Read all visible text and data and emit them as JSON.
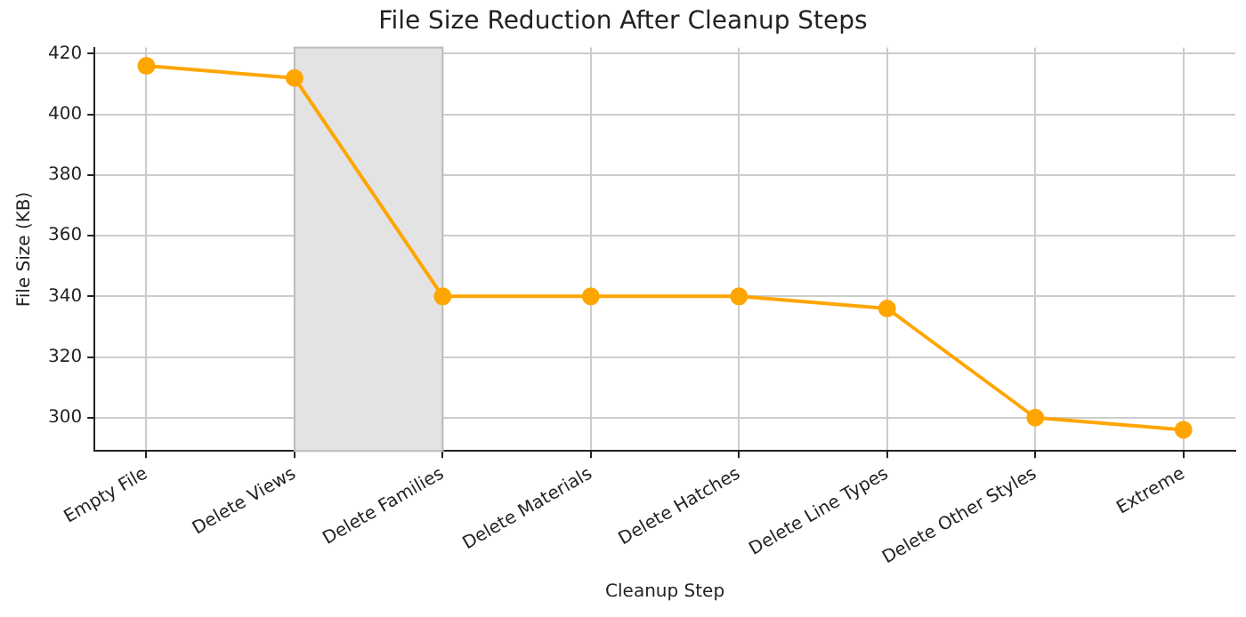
{
  "chart_data": {
    "type": "line",
    "title": "File Size Reduction After Cleanup Steps",
    "xlabel": "Cleanup Step",
    "ylabel": "File Size (KB)",
    "categories": [
      "Empty File",
      "Delete Views",
      "Delete Families",
      "Delete Materials",
      "Delete Hatches",
      "Delete Line Types",
      "Delete Other Styles",
      "Extreme"
    ],
    "series": [
      {
        "color": "#ffa500",
        "values": [
          416,
          412,
          340,
          340,
          340,
          336,
          300,
          296
        ]
      }
    ],
    "ylim": [
      289,
      422
    ],
    "yticks": [
      300,
      320,
      340,
      360,
      380,
      400,
      420
    ],
    "bands": [
      {
        "axis": "x",
        "from": "Delete Views",
        "to": "Delete Families",
        "color": "#e3e3e3"
      }
    ],
    "grid": true,
    "marker": "circle",
    "line_style": "solid",
    "legend": false
  }
}
